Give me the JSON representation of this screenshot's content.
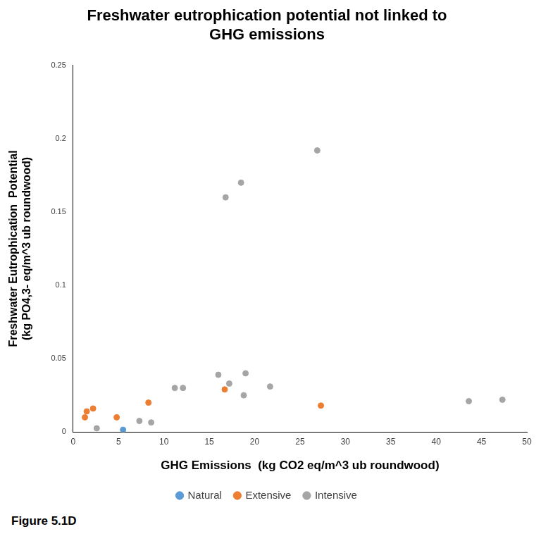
{
  "chart_data": {
    "type": "scatter",
    "title": "Freshwater eutrophication potential not linked to GHG emissions",
    "x_label": "GHG Emissions  (kg CO2 eq/m^3 ub roundwood)",
    "y_label": "Freshwater Eutrophication  Potential (kg PO4,3- eq/m^3 ub roundwood)",
    "annotation": "Figure 5.1D",
    "series": [
      {
        "name": "Natural",
        "color": "#5b9bd5",
        "x": [
          5.5
        ],
        "values": [
          0.0015
        ]
      },
      {
        "name": "Extensive",
        "color": "#ed7d31",
        "x": [
          1.3,
          1.5,
          2.2,
          4.8,
          8.3,
          16.7,
          27.3
        ],
        "values": [
          0.01,
          0.014,
          0.016,
          0.01,
          0.02,
          0.029,
          0.018
        ]
      },
      {
        "name": "Intensive",
        "color": "#a5a5a5",
        "x": [
          2.6,
          7.3,
          8.6,
          11.2,
          12.1,
          16.0,
          17.2,
          18.8,
          19.0,
          21.7,
          16.8,
          18.5,
          26.9,
          43.6,
          47.3
        ],
        "values": [
          0.0025,
          0.0075,
          0.0065,
          0.03,
          0.03,
          0.039,
          0.033,
          0.025,
          0.04,
          0.031,
          0.16,
          0.17,
          0.192,
          0.021,
          0.022
        ]
      }
    ],
    "xlim": [
      0,
      50
    ],
    "xticks": [
      0,
      5,
      10,
      15,
      20,
      25,
      30,
      35,
      40,
      45,
      50
    ],
    "ylim": [
      0,
      0.25
    ],
    "yticks": [
      0,
      0.05,
      0.1,
      0.15,
      0.2,
      0.25
    ],
    "grid": false,
    "legend": "bottom",
    "marker": "circle"
  }
}
